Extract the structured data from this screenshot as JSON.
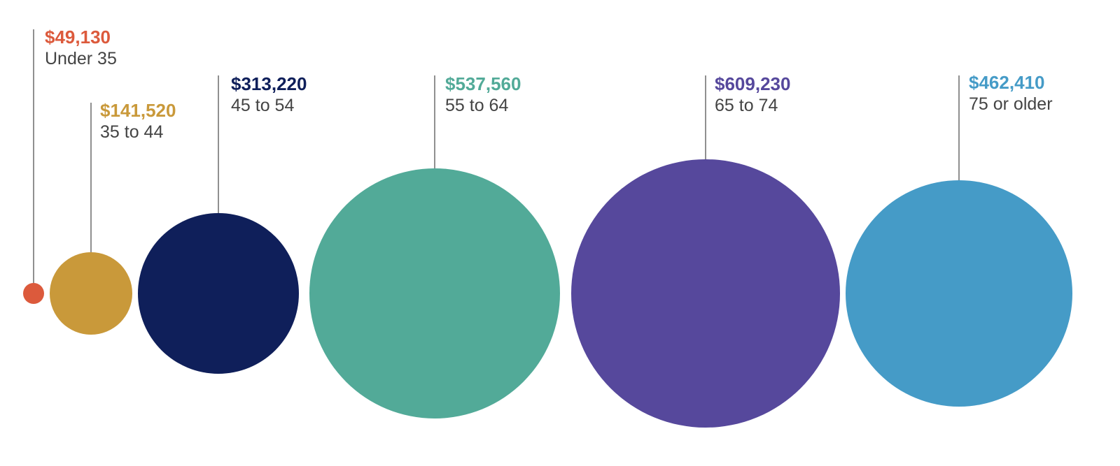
{
  "chart_data": {
    "type": "bubble",
    "title": "",
    "categories": [
      "Under 35",
      "35 to 44",
      "45 to 54",
      "55 to 64",
      "65 to 74",
      "75 or older"
    ],
    "values": [
      49130,
      141520,
      313220,
      537560,
      609230,
      462410
    ],
    "value_labels": [
      "$49,130",
      "$141,520",
      "$313,220",
      "$537,560",
      "$609,230",
      "$462,410"
    ],
    "colors": [
      "#dc5a3c",
      "#c9993a",
      "#0f1f5a",
      "#52aa98",
      "#56489c",
      "#459bc7"
    ]
  }
}
